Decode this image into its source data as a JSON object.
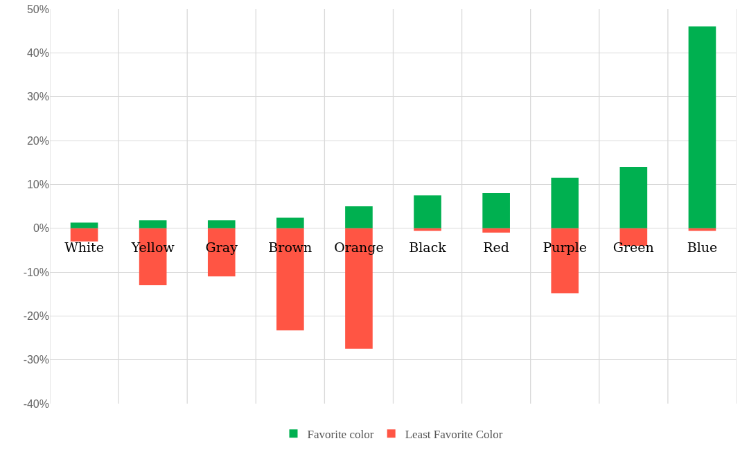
{
  "chart_data": {
    "type": "bar",
    "stacked": true,
    "categories": [
      "White",
      "Yellow",
      "Gray",
      "Brown",
      "Orange",
      "Black",
      "Red",
      "Purple",
      "Green",
      "Blue"
    ],
    "series": [
      {
        "name": "Favorite color",
        "color": "#00b050",
        "values": [
          1.3,
          1.8,
          1.8,
          2.4,
          5,
          7.5,
          8,
          11.5,
          14,
          46
        ]
      },
      {
        "name": "Least Favorite Color",
        "color": "#ff5544",
        "values": [
          -3,
          -13,
          -11,
          -23.3,
          -27.5,
          -0.6,
          -1,
          -14.8,
          -4,
          -0.6
        ]
      }
    ],
    "ylim": [
      -40,
      50
    ],
    "yticks": [
      {
        "value": -40,
        "label": "-40%"
      },
      {
        "value": -30,
        "label": "-30%"
      },
      {
        "value": -20,
        "label": "-20%"
      },
      {
        "value": -10,
        "label": "-10%"
      },
      {
        "value": 0,
        "label": "0%"
      },
      {
        "value": 10,
        "label": "10%"
      },
      {
        "value": 20,
        "label": "20%"
      },
      {
        "value": 30,
        "label": "30%"
      },
      {
        "value": 40,
        "label": "40%"
      },
      {
        "value": 50,
        "label": "50%"
      }
    ],
    "grid": true,
    "legend": "bottom"
  }
}
